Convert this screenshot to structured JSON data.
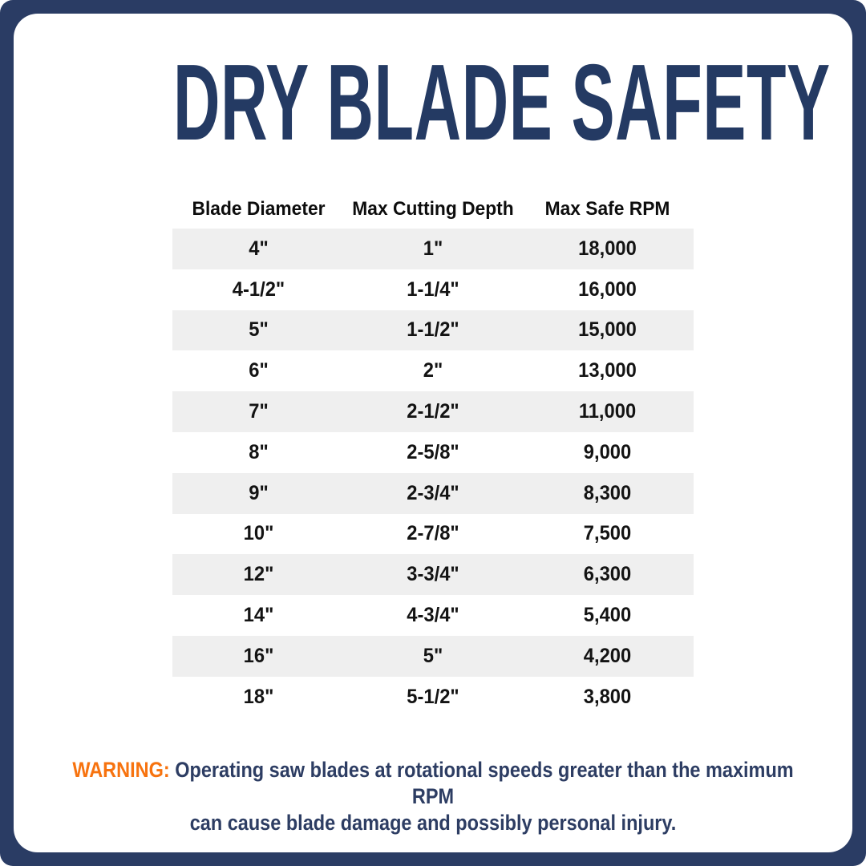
{
  "title": "DRY BLADE SAFETY",
  "chart_data": {
    "type": "table",
    "title": "DRY BLADE SAFETY",
    "columns": [
      "Blade Diameter",
      "Max Cutting Depth",
      "Max Safe RPM"
    ],
    "rows": [
      [
        "4\"",
        "1\"",
        "18,000"
      ],
      [
        "4-1/2\"",
        "1-1/4\"",
        "16,000"
      ],
      [
        "5\"",
        "1-1/2\"",
        "15,000"
      ],
      [
        "6\"",
        "2\"",
        "13,000"
      ],
      [
        "7\"",
        "2-1/2\"",
        "11,000"
      ],
      [
        "8\"",
        "2-5/8\"",
        "9,000"
      ],
      [
        "9\"",
        "2-3/4\"",
        "8,300"
      ],
      [
        "10\"",
        "2-7/8\"",
        "7,500"
      ],
      [
        "12\"",
        "3-3/4\"",
        "6,300"
      ],
      [
        "14\"",
        "4-3/4\"",
        "5,400"
      ],
      [
        "16\"",
        "5\"",
        "4,200"
      ],
      [
        "18\"",
        "5-1/2\"",
        "3,800"
      ]
    ],
    "layout_hints": {
      "striped_rows": "odd data rows shaded",
      "stripe_color": "#efefef",
      "alignment": "center"
    }
  },
  "warning": {
    "label": "WARNING:",
    "line1": "Operating saw blades at rotational speeds greater than the maximum RPM",
    "line2": "can cause blade damage and possibly personal injury."
  },
  "colors": {
    "frame_navy": "#2a3c64",
    "title_navy": "#243a63",
    "warning_navy": "#2d3d63",
    "warning_orange": "#f7730f",
    "row_stripe": "#efefef",
    "table_text": "#131313",
    "background": "#ffffff"
  }
}
